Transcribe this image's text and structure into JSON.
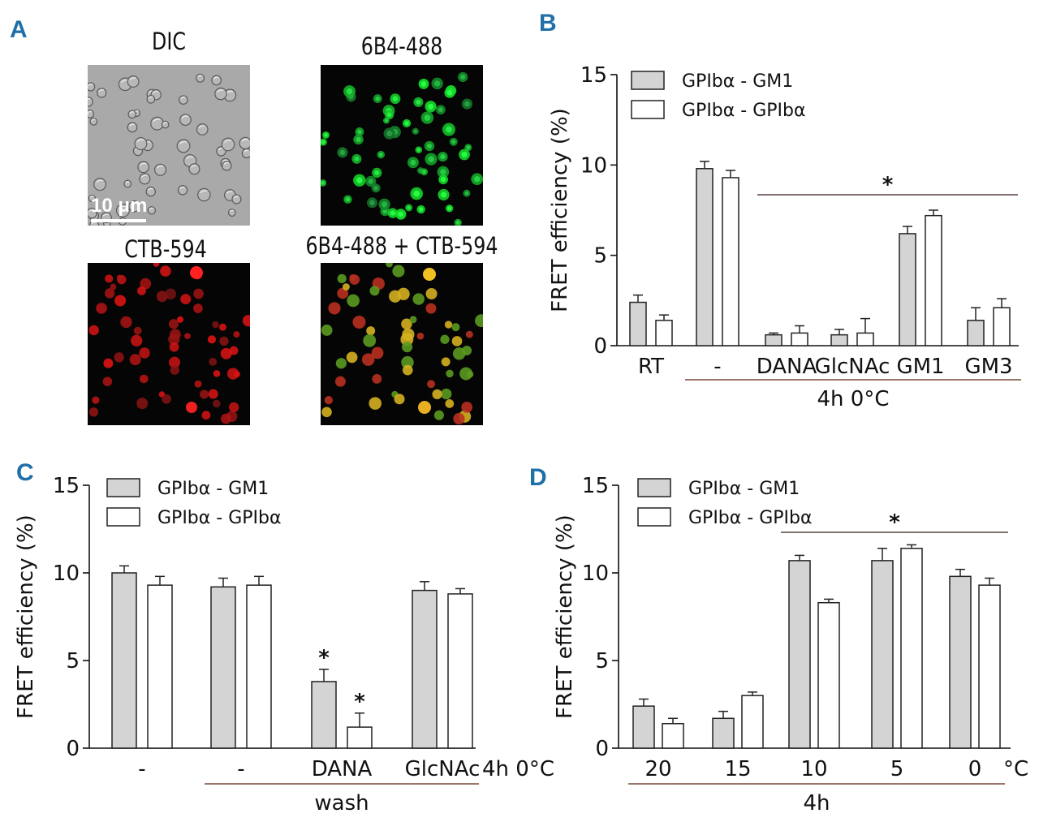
{
  "panels": {
    "A": {
      "letter": "A",
      "images": [
        {
          "title": "DIC",
          "kind": "dic"
        },
        {
          "title": "6B4-488",
          "kind": "green"
        },
        {
          "title": "CTB-594",
          "kind": "red"
        },
        {
          "title": "6B4-488 + CTB-594",
          "kind": "merge"
        }
      ],
      "scale_bar": "10 μm"
    },
    "B": {
      "letter": "B"
    },
    "C": {
      "letter": "C"
    },
    "D": {
      "letter": "D"
    }
  },
  "colors": {
    "gm1_fill": "#d4d4d4",
    "gpib_fill": "#ffffff",
    "bar_edge": "#222222",
    "bracket": "#7a4a3a",
    "letter": "#1f6fa8"
  },
  "chart_data": [
    {
      "id": "B",
      "type": "bar",
      "ylabel": "FRET efficiency (%)",
      "ylim": [
        0,
        15
      ],
      "yticks": [
        0,
        5,
        10,
        15
      ],
      "categories": [
        "RT",
        "-",
        "DANA",
        "GlcNAc",
        "GM1",
        "GM3"
      ],
      "series": [
        {
          "name": "GPIbα - GM1",
          "values": [
            2.4,
            9.8,
            0.6,
            0.6,
            6.2,
            1.4
          ],
          "errors": [
            0.4,
            0.4,
            0.1,
            0.3,
            0.4,
            0.7
          ]
        },
        {
          "name": "GPIbα - GPIbα",
          "values": [
            1.4,
            9.3,
            0.7,
            0.7,
            7.2,
            2.1
          ],
          "errors": [
            0.3,
            0.4,
            0.4,
            0.8,
            0.3,
            0.5
          ]
        }
      ],
      "legend": "top-left",
      "group_bracket": {
        "label": "4h 0°C",
        "from": 1,
        "to": 5
      },
      "significance": {
        "label": "*",
        "from": 2,
        "to": 5
      }
    },
    {
      "id": "C",
      "type": "bar",
      "ylabel": "FRET efficiency (%)",
      "ylim": [
        0,
        15
      ],
      "yticks": [
        0,
        5,
        10,
        15
      ],
      "categories": [
        "-",
        "-",
        "DANA",
        "GlcNAc"
      ],
      "series": [
        {
          "name": "GPIbα - GM1",
          "values": [
            10.0,
            9.2,
            3.8,
            9.0
          ],
          "errors": [
            0.4,
            0.5,
            0.7,
            0.5
          ]
        },
        {
          "name": "GPIbα - GPIbα",
          "values": [
            9.3,
            9.3,
            1.2,
            8.8
          ],
          "errors": [
            0.5,
            0.5,
            0.8,
            0.3
          ]
        }
      ],
      "legend": "top-left",
      "axis_note": "4h 0°C",
      "group_bracket": {
        "label": "wash",
        "from": 1,
        "to": 3
      },
      "stars": [
        {
          "category": 2,
          "series": 0,
          "label": "*"
        },
        {
          "category": 2,
          "series": 1,
          "label": "*"
        }
      ]
    },
    {
      "id": "D",
      "type": "bar",
      "ylabel": "FRET efficiency (%)",
      "ylim": [
        0,
        15
      ],
      "yticks": [
        0,
        5,
        10,
        15
      ],
      "categories": [
        "20",
        "15",
        "10",
        "5",
        "0"
      ],
      "series": [
        {
          "name": "GPIbα - GM1",
          "values": [
            2.4,
            1.7,
            10.7,
            10.7,
            9.8
          ],
          "errors": [
            0.4,
            0.4,
            0.3,
            0.7,
            0.4
          ]
        },
        {
          "name": "GPIbα - GPIbα",
          "values": [
            1.4,
            3.0,
            8.3,
            11.4,
            9.3
          ],
          "errors": [
            0.3,
            0.2,
            0.2,
            0.2,
            0.4
          ]
        }
      ],
      "legend": "top-left",
      "axis_unit": "°C",
      "group_bracket": {
        "label": "4h",
        "from": 0,
        "to": 4
      },
      "significance": {
        "label": "*",
        "from": 2,
        "to": 4
      }
    }
  ]
}
